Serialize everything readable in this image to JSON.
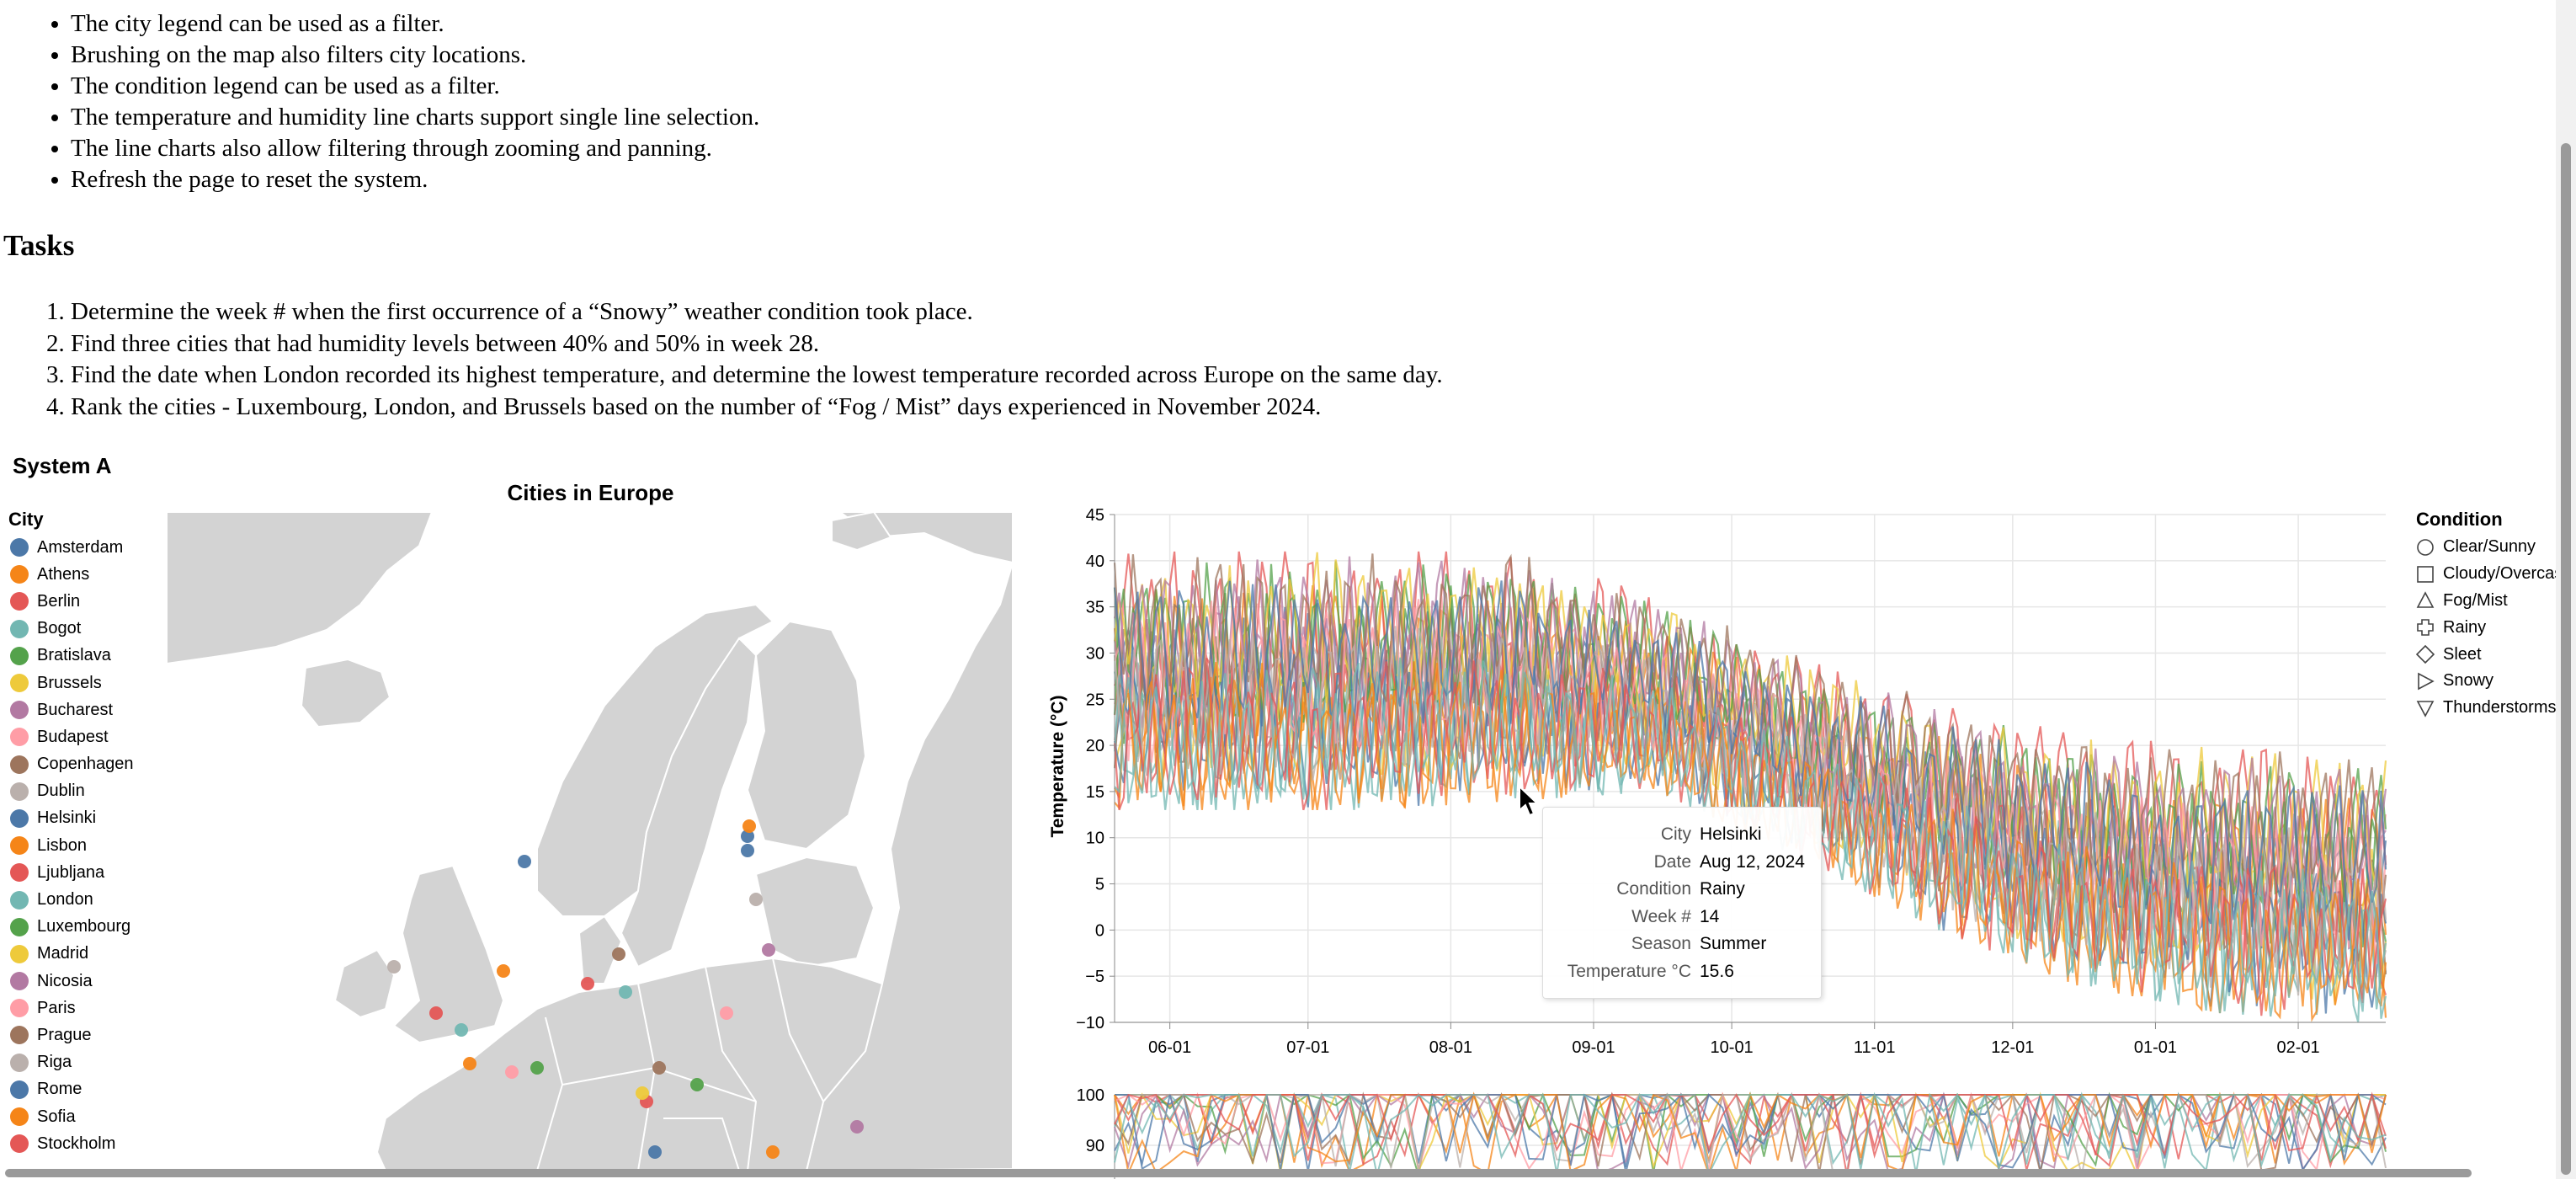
{
  "instructions": {
    "bullets": [
      "The city legend can be used as a filter.",
      "Brushing on the map also filters city locations.",
      "The condition legend can be used as a filter.",
      "The temperature and humidity line charts support single line selection.",
      "The line charts also allow filtering through zooming and panning.",
      "Refresh the page to reset the system."
    ],
    "tasks_heading": "Tasks",
    "tasks": [
      "Determine the week # when the first occurrence of a “Snowy” weather condition took place.",
      "Find three cities that had humidity levels between 40% and 50% in week 28.",
      "Find the date when London recorded its highest temperature, and determine the lowest temperature recorded across Europe on the same day.",
      "Rank the cities - Luxembourg, London, and Brussels based on the number of “Fog / Mist” days experienced in November 2024."
    ]
  },
  "system_label": "System A",
  "city_legend": {
    "title": "City",
    "items": [
      {
        "label": "Amsterdam",
        "color": "#4c78a8"
      },
      {
        "label": "Athens",
        "color": "#f58518"
      },
      {
        "label": "Berlin",
        "color": "#e45756"
      },
      {
        "label": "Bogot",
        "color": "#72b7b2"
      },
      {
        "label": "Bratislava",
        "color": "#54a24b"
      },
      {
        "label": "Brussels",
        "color": "#eeca3b"
      },
      {
        "label": "Bucharest",
        "color": "#b279a2"
      },
      {
        "label": "Budapest",
        "color": "#ff9da6"
      },
      {
        "label": "Copenhagen",
        "color": "#9d755d"
      },
      {
        "label": "Dublin",
        "color": "#bab0ac"
      },
      {
        "label": "Helsinki",
        "color": "#4c78a8"
      },
      {
        "label": "Lisbon",
        "color": "#f58518"
      },
      {
        "label": "Ljubljana",
        "color": "#e45756"
      },
      {
        "label": "London",
        "color": "#72b7b2"
      },
      {
        "label": "Luxembourg",
        "color": "#54a24b"
      },
      {
        "label": "Madrid",
        "color": "#eeca3b"
      },
      {
        "label": "Nicosia",
        "color": "#b279a2"
      },
      {
        "label": "Paris",
        "color": "#ff9da6"
      },
      {
        "label": "Prague",
        "color": "#9d755d"
      },
      {
        "label": "Riga",
        "color": "#bab0ac"
      },
      {
        "label": "Rome",
        "color": "#4c78a8"
      },
      {
        "label": "Sofia",
        "color": "#f58518"
      },
      {
        "label": "Stockholm",
        "color": "#e45756"
      }
    ]
  },
  "map": {
    "title": "Cities in Europe"
  },
  "temperature_chart": {
    "ylabel": "Temperature (°C)",
    "yticks": [
      "45",
      "40",
      "35",
      "30",
      "25",
      "20",
      "15",
      "10",
      "5",
      "0",
      "−5",
      "−10"
    ],
    "xticks": [
      "06-01",
      "07-01",
      "08-01",
      "09-01",
      "10-01",
      "11-01",
      "12-01",
      "01-01",
      "02-01"
    ]
  },
  "chart_data": {
    "type": "line",
    "ylabel": "Temperature (°C)",
    "ylim": [
      -10,
      45
    ],
    "x_ticks": [
      "06-01",
      "07-01",
      "08-01",
      "09-01",
      "10-01",
      "11-01",
      "12-01",
      "01-01",
      "02-01"
    ],
    "x_range": [
      "2024-05-20",
      "2025-02-20"
    ],
    "grid": true,
    "series_note_colors": [
      "#4c78a8",
      "#f58518",
      "#e45756",
      "#72b7b2",
      "#54a24b",
      "#eeca3b",
      "#b279a2",
      "#ff9da6",
      "#9d755d",
      "#bab0ac"
    ],
    "approx_envelope": {
      "months": [
        "2024-06",
        "2024-07",
        "2024-08",
        "2024-09",
        "2024-10",
        "2024-11",
        "2024-12",
        "2025-01",
        "2025-02"
      ],
      "max": [
        41,
        41,
        41,
        36,
        30,
        25,
        21,
        20,
        19
      ],
      "min": [
        13,
        13,
        14,
        15,
        8,
        0,
        -6,
        -9,
        -10
      ]
    }
  },
  "humidity_chart": {
    "yticks": [
      "100",
      "90"
    ]
  },
  "condition_legend": {
    "title": "Condition",
    "items": [
      {
        "label": "Clear/Sunny",
        "icon": "circle-icon"
      },
      {
        "label": "Cloudy/Overcas",
        "icon": "square-icon"
      },
      {
        "label": "Fog/Mist",
        "icon": "triangle-up-icon"
      },
      {
        "label": "Rainy",
        "icon": "cross-icon"
      },
      {
        "label": "Sleet",
        "icon": "diamond-icon"
      },
      {
        "label": "Snowy",
        "icon": "triangle-right-icon"
      },
      {
        "label": "Thunderstorms",
        "icon": "triangle-down-icon"
      }
    ]
  },
  "tooltip": {
    "rows": [
      {
        "key": "City",
        "value": "Helsinki"
      },
      {
        "key": "Date",
        "value": "Aug 12, 2024"
      },
      {
        "key": "Condition",
        "value": "Rainy"
      },
      {
        "key": "Week #",
        "value": "14"
      },
      {
        "key": "Season",
        "value": "Summer"
      },
      {
        "key": "Temperature °C",
        "value": "15.6"
      }
    ]
  }
}
